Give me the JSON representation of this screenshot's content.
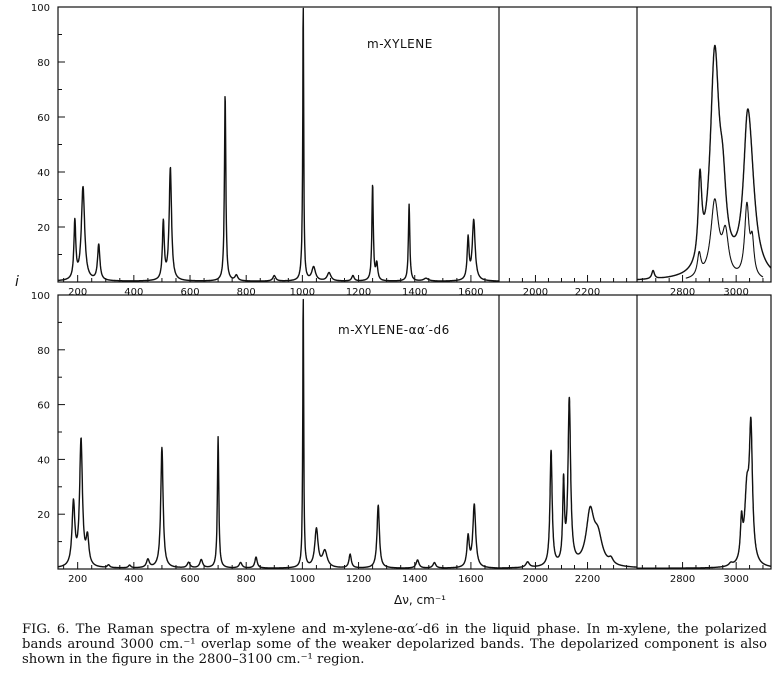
{
  "caption": {
    "fig_label": "FIG. 6.",
    "text": "The Raman spectra of m-xylene and m-xylene-αα′-d6 in the liquid phase. In m-xylene, the polarized bands around 3000 cm.⁻¹ overlap some of the weaker depolarized bands. The depolarized component is also shown in the figure in the 2800–3100 cm.⁻¹ region."
  },
  "chart_data": [
    {
      "type": "line",
      "title": "m-XYLENE",
      "ylabel": "i",
      "xlabel": "",
      "ylim": [
        0,
        100
      ],
      "yticks": [
        20,
        40,
        60,
        80,
        100
      ],
      "panels": [
        {
          "xlim": [
            130,
            1700
          ],
          "xticks": [
            200,
            400,
            600,
            800,
            1000,
            1200,
            1400,
            1600
          ]
        },
        {
          "xlim": [
            1860,
            2390
          ],
          "xticks": [
            2000,
            2200
          ]
        },
        {
          "xlim": [
            2630,
            3130
          ],
          "xticks": [
            2800,
            3000
          ]
        }
      ],
      "series": [
        {
          "peaks": [
            [
              190,
              21,
              4
            ],
            [
              219,
              34,
              7
            ],
            [
              275,
              13,
              5
            ],
            [
              505,
              21,
              4
            ],
            [
              530,
              41,
              5
            ],
            [
              725,
              68,
              3
            ],
            [
              765,
              2,
              6
            ],
            [
              900,
              2,
              6
            ],
            [
              998,
              3,
              5
            ],
            [
              1003,
              100,
              2
            ],
            [
              1040,
              5,
              8
            ],
            [
              1095,
              3,
              8
            ],
            [
              1180,
              2,
              5
            ],
            [
              1250,
              35,
              3
            ],
            [
              1265,
              6,
              4
            ],
            [
              1380,
              28,
              3
            ],
            [
              1440,
              1,
              10
            ],
            [
              1590,
              15,
              4
            ],
            [
              1610,
              22,
              6
            ],
            [
              2690,
              3,
              6
            ],
            [
              2865,
              30,
              8
            ],
            [
              2920,
              79,
              20
            ],
            [
              2950,
              22,
              15
            ],
            [
              3040,
              24,
              15
            ],
            [
              3050,
              40,
              24
            ]
          ]
        },
        {
          "name": "depolarized component",
          "peaks": [
            [
              2862,
              8,
              8
            ],
            [
              2920,
              28,
              18
            ],
            [
              2960,
              15,
              14
            ],
            [
              3040,
              26,
              10
            ],
            [
              3060,
              12,
              8
            ]
          ]
        }
      ]
    },
    {
      "type": "line",
      "title": "m-XYLENE-αα′-d6",
      "xlabel": "Δν, cm⁻¹",
      "ylim": [
        0,
        100
      ],
      "yticks": [
        20,
        40,
        60,
        80,
        100
      ],
      "panels": [
        {
          "xlim": [
            130,
            1700
          ],
          "xticks": [
            200,
            400,
            600,
            800,
            1000,
            1200,
            1400,
            1600
          ]
        },
        {
          "xlim": [
            1860,
            2390
          ],
          "xticks": [
            2000,
            2200
          ]
        },
        {
          "xlim": [
            2630,
            3130
          ],
          "xticks": [
            2800,
            3000
          ]
        }
      ],
      "series": [
        {
          "peaks": [
            [
              185,
              23,
              6
            ],
            [
              212,
              46,
              6
            ],
            [
              235,
              10,
              6
            ],
            [
              310,
              1,
              5
            ],
            [
              385,
              1,
              5
            ],
            [
              450,
              3,
              6
            ],
            [
              500,
              44,
              5
            ],
            [
              595,
              2,
              6
            ],
            [
              640,
              3,
              6
            ],
            [
              700,
              48,
              3
            ],
            [
              780,
              2,
              6
            ],
            [
              835,
              4,
              5
            ],
            [
              1003,
              100,
              2
            ],
            [
              1050,
              14,
              7
            ],
            [
              1080,
              6,
              10
            ],
            [
              1170,
              5,
              5
            ],
            [
              1270,
              23,
              5
            ],
            [
              1410,
              3,
              6
            ],
            [
              1470,
              2,
              6
            ],
            [
              1590,
              11,
              5
            ],
            [
              1612,
              23,
              6
            ],
            [
              1970,
              2,
              8
            ],
            [
              2060,
              42,
              5
            ],
            [
              2108,
              29,
              4
            ],
            [
              2130,
              60,
              6
            ],
            [
              2210,
              19,
              18
            ],
            [
              2240,
              10,
              20
            ],
            [
              2290,
              2,
              10
            ],
            [
              2980,
              1,
              8
            ],
            [
              3020,
              14,
              5
            ],
            [
              3040,
              25,
              10
            ],
            [
              3055,
              47,
              7
            ]
          ]
        }
      ]
    }
  ]
}
